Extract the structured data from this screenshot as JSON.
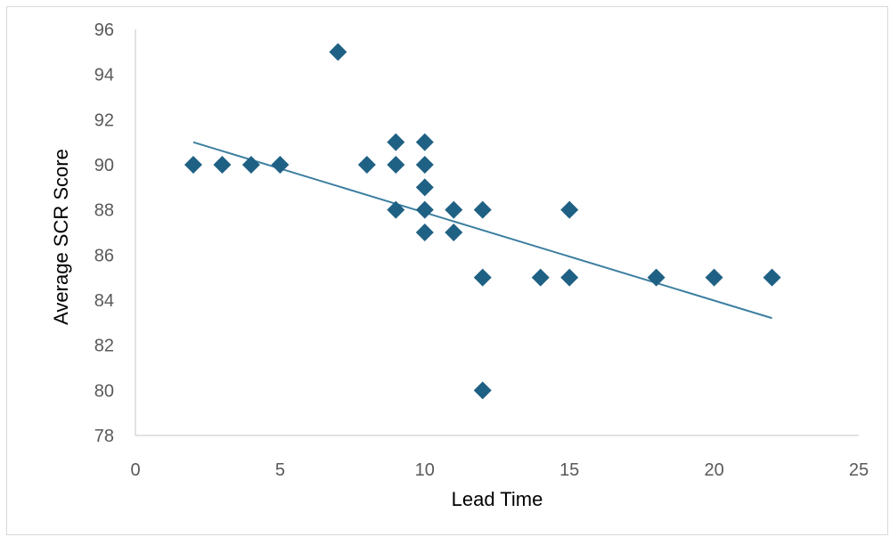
{
  "chart_data": {
    "type": "scatter",
    "title": "",
    "xlabel": "Lead Time",
    "ylabel": "Average SCR Score",
    "xlim": [
      0,
      25
    ],
    "ylim": [
      78,
      96
    ],
    "x_ticks": [
      0,
      5,
      10,
      15,
      20,
      25
    ],
    "y_ticks": [
      78,
      80,
      82,
      84,
      86,
      88,
      90,
      92,
      94,
      96
    ],
    "grid": false,
    "legend": "none",
    "marker": "diamond",
    "marker_color": "#1f6184",
    "trendline_color": "#3c7fa0",
    "series": [
      {
        "x": [
          2,
          3,
          4,
          5,
          7,
          8,
          9,
          9,
          9,
          10,
          10,
          10,
          10,
          10,
          11,
          11,
          12,
          12,
          12,
          14,
          15,
          15,
          18,
          20,
          22
        ],
        "y": [
          90,
          90,
          90,
          90,
          95,
          90,
          91,
          90,
          88,
          91,
          90,
          89,
          88,
          87,
          88,
          87,
          88,
          85,
          80,
          85,
          88,
          85,
          85,
          85,
          85
        ]
      }
    ],
    "trendline": {
      "type": "linear",
      "x": [
        2,
        22
      ],
      "y": [
        91.0,
        83.2
      ]
    }
  }
}
